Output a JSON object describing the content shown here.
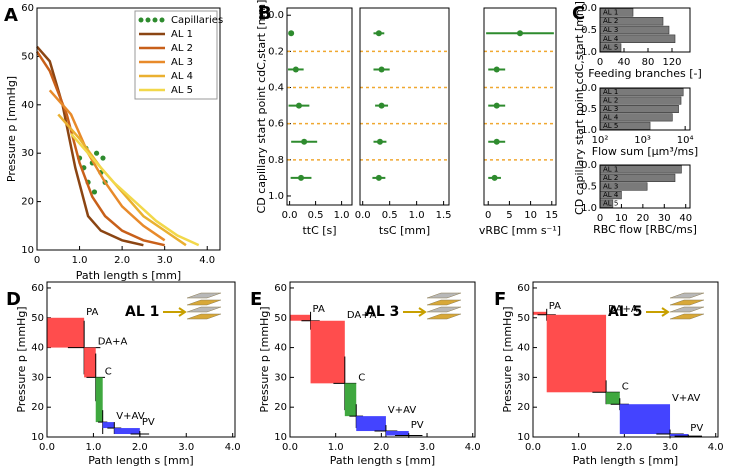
{
  "chart_data": [
    {
      "type": "line",
      "panel": "A",
      "ylabel": "Pressure p [mmHg]",
      "xlabel": "Path length s [mm]",
      "xlim": [
        0,
        4.3
      ],
      "ylim": [
        10,
        60
      ],
      "xticks": [
        0,
        {
          "value": 1,
          "label": "1.0"
        },
        {
          "value": 2,
          "label": "2.0"
        },
        {
          "value": 3,
          "label": "3.0"
        },
        {
          "value": 4,
          "label": "4.0"
        }
      ],
      "yticks": [
        10,
        20,
        30,
        40,
        50,
        60
      ],
      "legend": "upper right",
      "series": [
        {
          "name": "Capillaries",
          "color": "#2e8b2e",
          "marker": "dots",
          "x": [
            1.0,
            1.1,
            1.15,
            1.2,
            1.3,
            1.35,
            1.4,
            1.5,
            1.55,
            1.6
          ],
          "values": [
            29,
            27,
            31,
            24,
            28,
            22,
            30,
            26,
            29,
            24
          ]
        },
        {
          "name": "AL 1",
          "color": "#8b4513",
          "x": [
            0,
            0.3,
            0.6,
            0.9,
            1.2,
            1.5,
            2.0,
            2.5
          ],
          "values": [
            52,
            49,
            40,
            27,
            17,
            14,
            12,
            11
          ]
        },
        {
          "name": "AL 2",
          "color": "#c8601a",
          "x": [
            0,
            0.3,
            0.7,
            1.0,
            1.3,
            1.6,
            2.0,
            2.5,
            3.0
          ],
          "values": [
            51,
            47,
            38,
            28,
            21,
            17,
            14,
            12,
            11
          ]
        },
        {
          "name": "AL 3",
          "color": "#e88a2a",
          "x": [
            0.3,
            0.8,
            1.2,
            1.6,
            2.0,
            2.5,
            3.0
          ],
          "values": [
            43,
            38,
            30,
            24,
            19,
            15,
            12
          ]
        },
        {
          "name": "AL 4",
          "color": "#eab030",
          "x": [
            0.5,
            1.0,
            1.5,
            2.0,
            2.5,
            3.0,
            3.5
          ],
          "values": [
            38,
            33,
            27,
            22,
            17,
            14,
            11
          ]
        },
        {
          "name": "AL 5",
          "color": "#f2d84a",
          "x": [
            0.8,
            1.3,
            1.8,
            2.3,
            2.8,
            3.3,
            3.8
          ],
          "values": [
            34,
            29,
            24,
            20,
            16,
            13,
            11
          ]
        }
      ]
    },
    {
      "type": "scatter",
      "panel": "B",
      "ylabel": "CD capillary start point cdC,start [mm]",
      "xlabel": "ttC [s]",
      "xlim": [
        -0.05,
        1.2
      ],
      "ylim": [
        -0.04,
        1.05
      ],
      "yinvert": true,
      "xticks": [
        {
          "value": 0,
          "label": "0.0"
        },
        0.5,
        {
          "value": 1,
          "label": "1.0"
        }
      ],
      "yticks": [
        {
          "value": 0,
          "label": "0.0"
        },
        0.2,
        0.4,
        0.6,
        0.8,
        {
          "value": 1,
          "label": "1.0"
        }
      ],
      "ref_lines": [
        0.2,
        0.4,
        0.6,
        0.8
      ],
      "ref_color": "#f0a830",
      "color": "#2e8b2e",
      "y": [
        0.1,
        0.3,
        0.5,
        0.7,
        0.9
      ],
      "x": [
        0.03,
        0.12,
        0.18,
        0.28,
        0.22
      ],
      "xerr": [
        0.05,
        0.15,
        0.2,
        0.25,
        0.2
      ]
    },
    {
      "type": "scatter",
      "xlabel": "tsC [mm]",
      "xlim": [
        -0.05,
        1.6
      ],
      "ylim": [
        -0.04,
        1.05
      ],
      "yinvert": true,
      "xticks": [
        {
          "value": 0,
          "label": "0.0"
        },
        0.5,
        {
          "value": 1,
          "label": "1.0"
        },
        1.5
      ],
      "ref_lines": [
        0.2,
        0.4,
        0.6,
        0.8
      ],
      "ref_color": "#f0a830",
      "color": "#2e8b2e",
      "y": [
        0.1,
        0.3,
        0.5,
        0.7,
        0.9
      ],
      "x": [
        0.3,
        0.35,
        0.35,
        0.32,
        0.3
      ],
      "xerr": [
        0.1,
        0.15,
        0.12,
        0.12,
        0.12
      ]
    },
    {
      "type": "scatter",
      "xlabel": "vRBC [mm s⁻¹]",
      "xlim": [
        -1,
        16
      ],
      "ylim": [
        -0.04,
        1.05
      ],
      "yinvert": true,
      "xticks": [
        0,
        5,
        10,
        15
      ],
      "ref_lines": [
        0.2,
        0.4,
        0.6,
        0.8
      ],
      "ref_color": "#f0a830",
      "color": "#2e8b2e",
      "y": [
        0.1,
        0.3,
        0.5,
        0.7,
        0.9
      ],
      "x": [
        7.5,
        2,
        2,
        2,
        1.5
      ],
      "xerr": [
        8,
        2,
        2,
        2,
        1.5
      ]
    },
    {
      "type": "barh",
      "panel": "C",
      "ylabel": "CD capillary start point cdC,start [mm]",
      "xlabel": "Feeding branches [-]",
      "xlim": [
        0,
        150
      ],
      "ylim": [
        0,
        1
      ],
      "yinvert": true,
      "xticks": [
        0,
        40,
        80,
        120
      ],
      "yticks": [
        {
          "value": 0,
          "label": "0.0"
        },
        0.5,
        {
          "value": 1,
          "label": "1.0"
        }
      ],
      "color": "#7a7a7a",
      "categories": [
        "AL 1",
        "AL 2",
        "AL 3",
        "AL 4",
        "AL 5"
      ],
      "values": [
        55,
        105,
        115,
        125,
        35
      ]
    },
    {
      "type": "barh",
      "xlabel": "Flow sum [µm³/ms]",
      "xscale": "log",
      "xlim": [
        100,
        13000
      ],
      "ylim": [
        0,
        1
      ],
      "yinvert": true,
      "xticks": [
        {
          "value": 100,
          "label": "10²"
        },
        {
          "value": 1000,
          "label": "10³"
        },
        {
          "value": 10000,
          "label": "10⁴"
        }
      ],
      "yticks": [
        {
          "value": 0,
          "label": "0.0"
        },
        0.5,
        {
          "value": 1,
          "label": "1.0"
        }
      ],
      "color": "#7a7a7a",
      "categories": [
        "AL 1",
        "AL 2",
        "AL 3",
        "AL 4",
        "AL 5"
      ],
      "values": [
        9000,
        8000,
        7000,
        5000,
        1500
      ]
    },
    {
      "type": "barh",
      "xlabel": "RBC flow [RBC/ms]",
      "xlim": [
        0,
        42
      ],
      "ylim": [
        0,
        1
      ],
      "yinvert": true,
      "xticks": [
        0,
        10,
        20,
        30,
        40
      ],
      "yticks": [
        {
          "value": 0,
          "label": "0.0"
        },
        0.5,
        {
          "value": 1,
          "label": "1.0"
        }
      ],
      "color": "#7a7a7a",
      "categories": [
        "AL 1",
        "AL 2",
        "AL 3",
        "AL 4",
        "AL 5"
      ],
      "values": [
        38,
        35,
        22,
        10,
        6
      ]
    },
    {
      "type": "step",
      "panel": "D",
      "annotation": "AL 1",
      "ylabel": "Pressure p [mmHg]",
      "xlabel": "Path length s [mm]",
      "xlim": [
        0,
        4.05
      ],
      "ylim": [
        10,
        62
      ],
      "xticks": [
        {
          "value": 0,
          "label": "0.0"
        },
        {
          "value": 1,
          "label": "1.0"
        },
        {
          "value": 2,
          "label": "2.0"
        },
        {
          "value": 3,
          "label": "3.0"
        },
        {
          "value": 4,
          "label": "4.0"
        }
      ],
      "yticks": [
        10,
        20,
        30,
        40,
        50,
        60
      ],
      "series": [
        {
          "name": "PA",
          "color": "#ff4d4d",
          "x": [
            0,
            0.8
          ],
          "values": [
            50,
            40
          ],
          "xerr": 0.35,
          "yerr": 9
        },
        {
          "name": "DA+A",
          "color": "#ff4d4d",
          "x": [
            0.8,
            1.05
          ],
          "values": [
            40,
            30
          ],
          "xerr": 0.2,
          "yerr": 8
        },
        {
          "name": "C",
          "color": "#3fa83f",
          "x": [
            1.05,
            1.2
          ],
          "values": [
            30,
            15
          ],
          "xerr": 0.1,
          "yerr": 4
        },
        {
          "name": "V+AV",
          "color": "#4444ff",
          "x": [
            1.2,
            1.45
          ],
          "values": [
            15,
            13
          ],
          "xerr": 0.15,
          "yerr": 2
        },
        {
          "name": "PV",
          "color": "#4444ff",
          "x": [
            1.45,
            2.0
          ],
          "values": [
            13,
            11
          ],
          "xerr": 0.2,
          "yerr": 1
        }
      ]
    },
    {
      "type": "step",
      "panel": "E",
      "annotation": "AL 3",
      "ylabel": "Pressure p [mmHg]",
      "xlabel": "Path length s [mm]",
      "xlim": [
        0,
        4.05
      ],
      "ylim": [
        10,
        62
      ],
      "xticks": [
        {
          "value": 0,
          "label": "0.0"
        },
        {
          "value": 1,
          "label": "1.0"
        },
        {
          "value": 2,
          "label": "2.0"
        },
        {
          "value": 3,
          "label": "3.0"
        },
        {
          "value": 4,
          "label": "4.0"
        }
      ],
      "yticks": [
        10,
        20,
        30,
        40,
        50,
        60
      ],
      "series": [
        {
          "name": "PA",
          "color": "#ff4d4d",
          "x": [
            0,
            0.45
          ],
          "values": [
            51,
            49
          ],
          "xerr": 0.2,
          "yerr": 3
        },
        {
          "name": "DA+A",
          "color": "#ff4d4d",
          "x": [
            0.45,
            1.2
          ],
          "values": [
            49,
            28
          ],
          "xerr": 0.25,
          "yerr": 9
        },
        {
          "name": "C",
          "color": "#3fa83f",
          "x": [
            1.2,
            1.45
          ],
          "values": [
            28,
            17
          ],
          "xerr": 0.15,
          "yerr": 4
        },
        {
          "name": "V+AV",
          "color": "#4444ff",
          "x": [
            1.45,
            2.1
          ],
          "values": [
            17,
            12
          ],
          "xerr": 0.25,
          "yerr": 2
        },
        {
          "name": "PV",
          "color": "#4444ff",
          "x": [
            2.1,
            2.6
          ],
          "values": [
            12,
            10.5
          ],
          "xerr": 0.3,
          "yerr": 0.8
        }
      ]
    },
    {
      "type": "step",
      "panel": "F",
      "annotation": "AL 5",
      "ylabel": "Pressure p [mmHg]",
      "xlabel": "Path length s [mm]",
      "xlim": [
        0,
        4.05
      ],
      "ylim": [
        10,
        62
      ],
      "xticks": [
        {
          "value": 0,
          "label": "0.0"
        },
        {
          "value": 1,
          "label": "1.0"
        },
        {
          "value": 2,
          "label": "2.0"
        },
        {
          "value": 3,
          "label": "3.0"
        },
        {
          "value": 4,
          "label": "4.0"
        }
      ],
      "yticks": [
        10,
        20,
        30,
        40,
        50,
        60
      ],
      "series": [
        {
          "name": "PA",
          "color": "#ff4d4d",
          "x": [
            0,
            0.3
          ],
          "values": [
            52,
            51
          ],
          "xerr": 0.2,
          "yerr": 2
        },
        {
          "name": "DA+A",
          "color": "#ff4d4d",
          "x": [
            0.3,
            1.6
          ],
          "values": [
            51,
            25
          ],
          "xerr": 0.3,
          "yerr": 4
        },
        {
          "name": "C",
          "color": "#3fa83f",
          "x": [
            1.6,
            1.9
          ],
          "values": [
            25,
            21
          ],
          "xerr": 0.2,
          "yerr": 2
        },
        {
          "name": "V+AV",
          "color": "#4444ff",
          "x": [
            1.9,
            3.0
          ],
          "values": [
            21,
            11
          ],
          "xerr": 0.3,
          "yerr": 1.5
        },
        {
          "name": "PV",
          "color": "#4444ff",
          "x": [
            3.0,
            3.4
          ],
          "values": [
            11,
            10.3
          ],
          "xerr": 0.3,
          "yerr": 0.5
        }
      ]
    }
  ]
}
